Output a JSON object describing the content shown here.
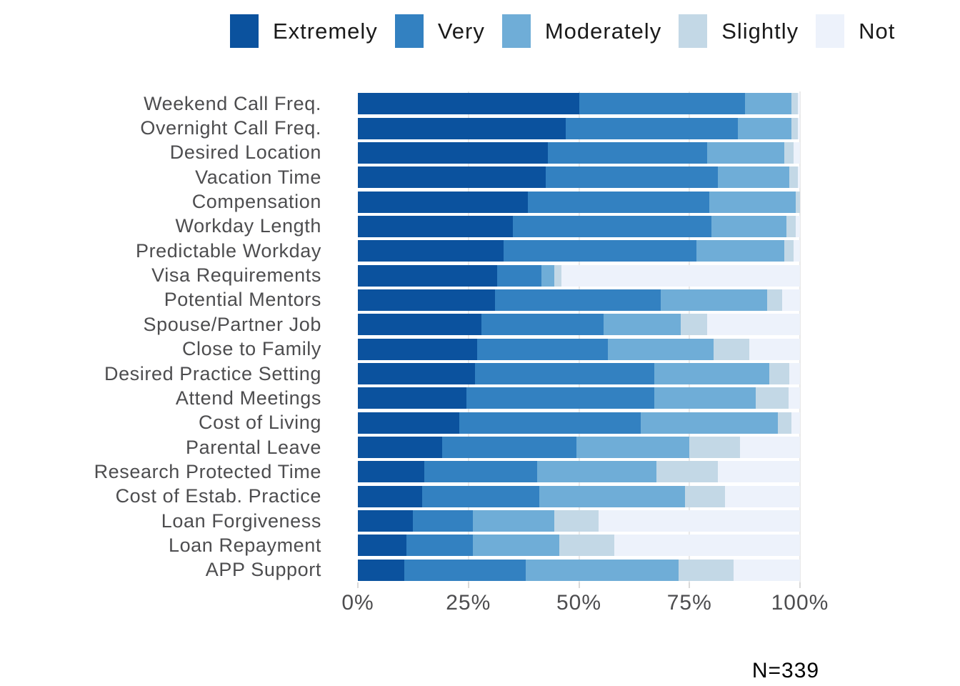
{
  "colors": {
    "extremely": "#0b529e",
    "very": "#3381c1",
    "moderately": "#6fadd7",
    "slightly": "#c3d8e6",
    "not": "#edf2fb",
    "gridline": "#e9e9e9",
    "axis_text": "#4d4d4f",
    "legend_text": "#1a1a1a"
  },
  "legend": {
    "items": [
      {
        "key": "extremely",
        "label": "Extremely"
      },
      {
        "key": "very",
        "label": "Very"
      },
      {
        "key": "moderately",
        "label": "Moderately"
      },
      {
        "key": "slightly",
        "label": "Slightly"
      },
      {
        "key": "not",
        "label": "Not"
      }
    ]
  },
  "axis": {
    "ticks": [
      {
        "value": 0,
        "label": "0%"
      },
      {
        "value": 25,
        "label": "25%"
      },
      {
        "value": 50,
        "label": "50%"
      },
      {
        "value": 75,
        "label": "75%"
      },
      {
        "value": 100,
        "label": "100%"
      }
    ],
    "gridlines": [
      25,
      50,
      75,
      100
    ]
  },
  "footer": {
    "n_label": "N=339"
  },
  "chart_data": {
    "type": "bar",
    "orientation": "horizontal-stacked",
    "title": "",
    "xlabel": "",
    "ylabel": "",
    "xlim": [
      0,
      100
    ],
    "legend_position": "top",
    "grid": "vertical",
    "sample_size": "N=339",
    "categories": [
      "Weekend Call Freq.",
      "Overnight Call Freq.",
      "Desired Location",
      "Vacation Time",
      "Compensation",
      "Workday Length",
      "Predictable Workday",
      "Visa Requirements",
      "Potential Mentors",
      "Spouse/Partner Job",
      "Close to Family",
      "Desired Practice Setting",
      "Attend Meetings",
      "Cost of Living",
      "Parental Leave",
      "Research Protected Time",
      "Cost of Estab. Practice",
      "Loan Forgiveness",
      "Loan Repayment",
      "APP Support"
    ],
    "series": [
      {
        "name": "Extremely",
        "key": "extremely",
        "values": [
          50,
          47,
          43,
          42.5,
          38.5,
          35,
          33,
          31.5,
          31,
          28,
          27,
          26.5,
          24.5,
          23,
          19,
          15,
          14.5,
          12.5,
          11,
          10.5
        ]
      },
      {
        "name": "Very",
        "key": "very",
        "values": [
          37.5,
          39,
          36,
          39,
          41,
          45,
          43.5,
          10,
          37.5,
          27.5,
          29.5,
          40.5,
          42.5,
          41,
          30.5,
          25.5,
          26.5,
          13.5,
          15,
          27.5
        ]
      },
      {
        "name": "Moderately",
        "key": "moderately",
        "values": [
          10.5,
          12,
          17.5,
          16,
          19.5,
          17,
          20,
          3,
          24,
          17.5,
          24,
          26,
          23,
          31,
          25.5,
          27,
          33,
          18.5,
          19.5,
          34.5
        ]
      },
      {
        "name": "Slightly",
        "key": "slightly",
        "values": [
          1.5,
          1.5,
          2,
          2,
          1,
          2,
          2,
          1.5,
          3.5,
          6,
          8,
          4.5,
          7.5,
          3,
          11.5,
          14,
          9,
          10,
          12.5,
          12.5
        ]
      },
      {
        "name": "Not",
        "key": "not",
        "values": [
          0.5,
          0.5,
          1.5,
          0.5,
          0,
          1,
          1.5,
          54,
          4,
          21,
          11.5,
          2.5,
          2.5,
          2,
          13.5,
          18.5,
          17,
          45.5,
          42,
          15
        ]
      }
    ]
  }
}
